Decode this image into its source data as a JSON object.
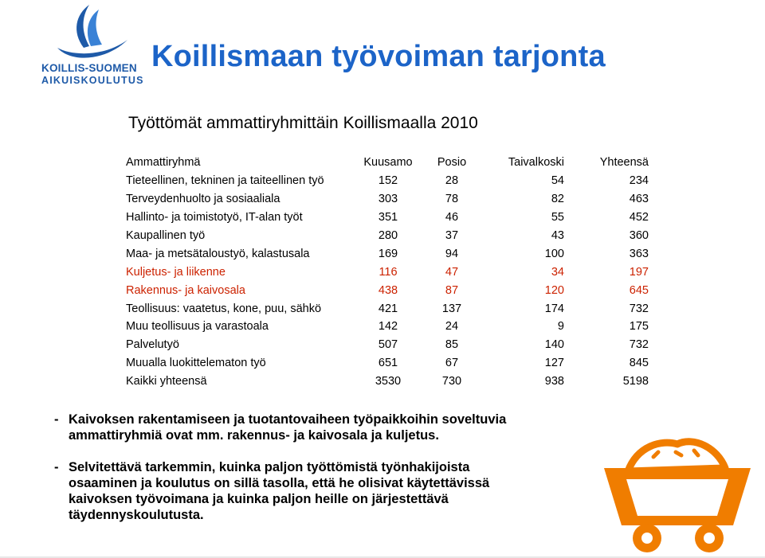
{
  "logo": {
    "line1": "KOILLIS-SUOMEN",
    "line2": "AIKUISKOULUTUS",
    "icon": "swoosh-logo-icon"
  },
  "title": "Koillismaan työvoiman tarjonta",
  "subtitle": "Työttömät ammattiryhmittäin Koillismaalla 2010",
  "table": {
    "headers": [
      "Ammattiryhmä",
      "Kuusamo",
      "Posio",
      "Taivalkoski",
      "Yhteensä"
    ],
    "rows": [
      {
        "label": "Tieteellinen, tekninen ja taiteellinen työ",
        "kuusamo": "152",
        "posio": "28",
        "taivalkoski": "54",
        "yhteensa": "234"
      },
      {
        "label": "Terveydenhuolto ja sosiaaliala",
        "kuusamo": "303",
        "posio": "78",
        "taivalkoski": "82",
        "yhteensa": "463"
      },
      {
        "label": "Hallinto- ja toimistotyö, IT-alan työt",
        "kuusamo": "351",
        "posio": "46",
        "taivalkoski": "55",
        "yhteensa": "452"
      },
      {
        "label": "Kaupallinen työ",
        "kuusamo": "280",
        "posio": "37",
        "taivalkoski": "43",
        "yhteensa": "360"
      },
      {
        "label": "Maa- ja metsätaloustyö, kalastusala",
        "kuusamo": "169",
        "posio": "94",
        "taivalkoski": "100",
        "yhteensa": "363"
      },
      {
        "label": "Kuljetus- ja liikenne",
        "kuusamo": "116",
        "posio": "47",
        "taivalkoski": "34",
        "yhteensa": "197"
      },
      {
        "label": "Rakennus- ja kaivosala",
        "kuusamo": "438",
        "posio": "87",
        "taivalkoski": "120",
        "yhteensa": "645"
      },
      {
        "label": "Teollisuus: vaatetus, kone, puu, sähkö",
        "kuusamo": "421",
        "posio": "137",
        "taivalkoski": "174",
        "yhteensa": "732"
      },
      {
        "label": "Muu teollisuus ja varastoala",
        "kuusamo": "142",
        "posio": "24",
        "taivalkoski": "9",
        "yhteensa": "175"
      },
      {
        "label": "Palvelutyö",
        "kuusamo": "507",
        "posio": "85",
        "taivalkoski": "140",
        "yhteensa": "732"
      },
      {
        "label": "Muualla luokittelematon työ",
        "kuusamo": "651",
        "posio": "67",
        "taivalkoski": "127",
        "yhteensa": "845"
      },
      {
        "label": "Kaikki yhteensä",
        "kuusamo": "3530",
        "posio": "730",
        "taivalkoski": "938",
        "yhteensa": "5198"
      }
    ],
    "highlight_color": "#cc2200"
  },
  "notes": [
    {
      "dash": "-",
      "line1": "Kaivoksen rakentamiseen ja tuotantovaiheen työpaikkoihin soveltuvia",
      "rest": [
        "ammattiryhmiä ovat mm. rakennus- ja kaivosala ja kuljetus."
      ]
    },
    {
      "dash": "-",
      "line1": "Selvitettävä tarkemmin, kuinka paljon työttömistä työnhakijoista",
      "rest": [
        "osaaminen ja koulutus on sillä tasolla, että he olisivat käytettävissä",
        "kaivoksen työvoimana ja kuinka paljon heille on järjestettävä",
        "täydennyskoulutusta."
      ]
    }
  ],
  "colors": {
    "title": "#1c64c8",
    "cart": "#f07d00",
    "logo": "#1e5aa8"
  },
  "decor": {
    "cart_icon": "mine-cart-icon"
  }
}
